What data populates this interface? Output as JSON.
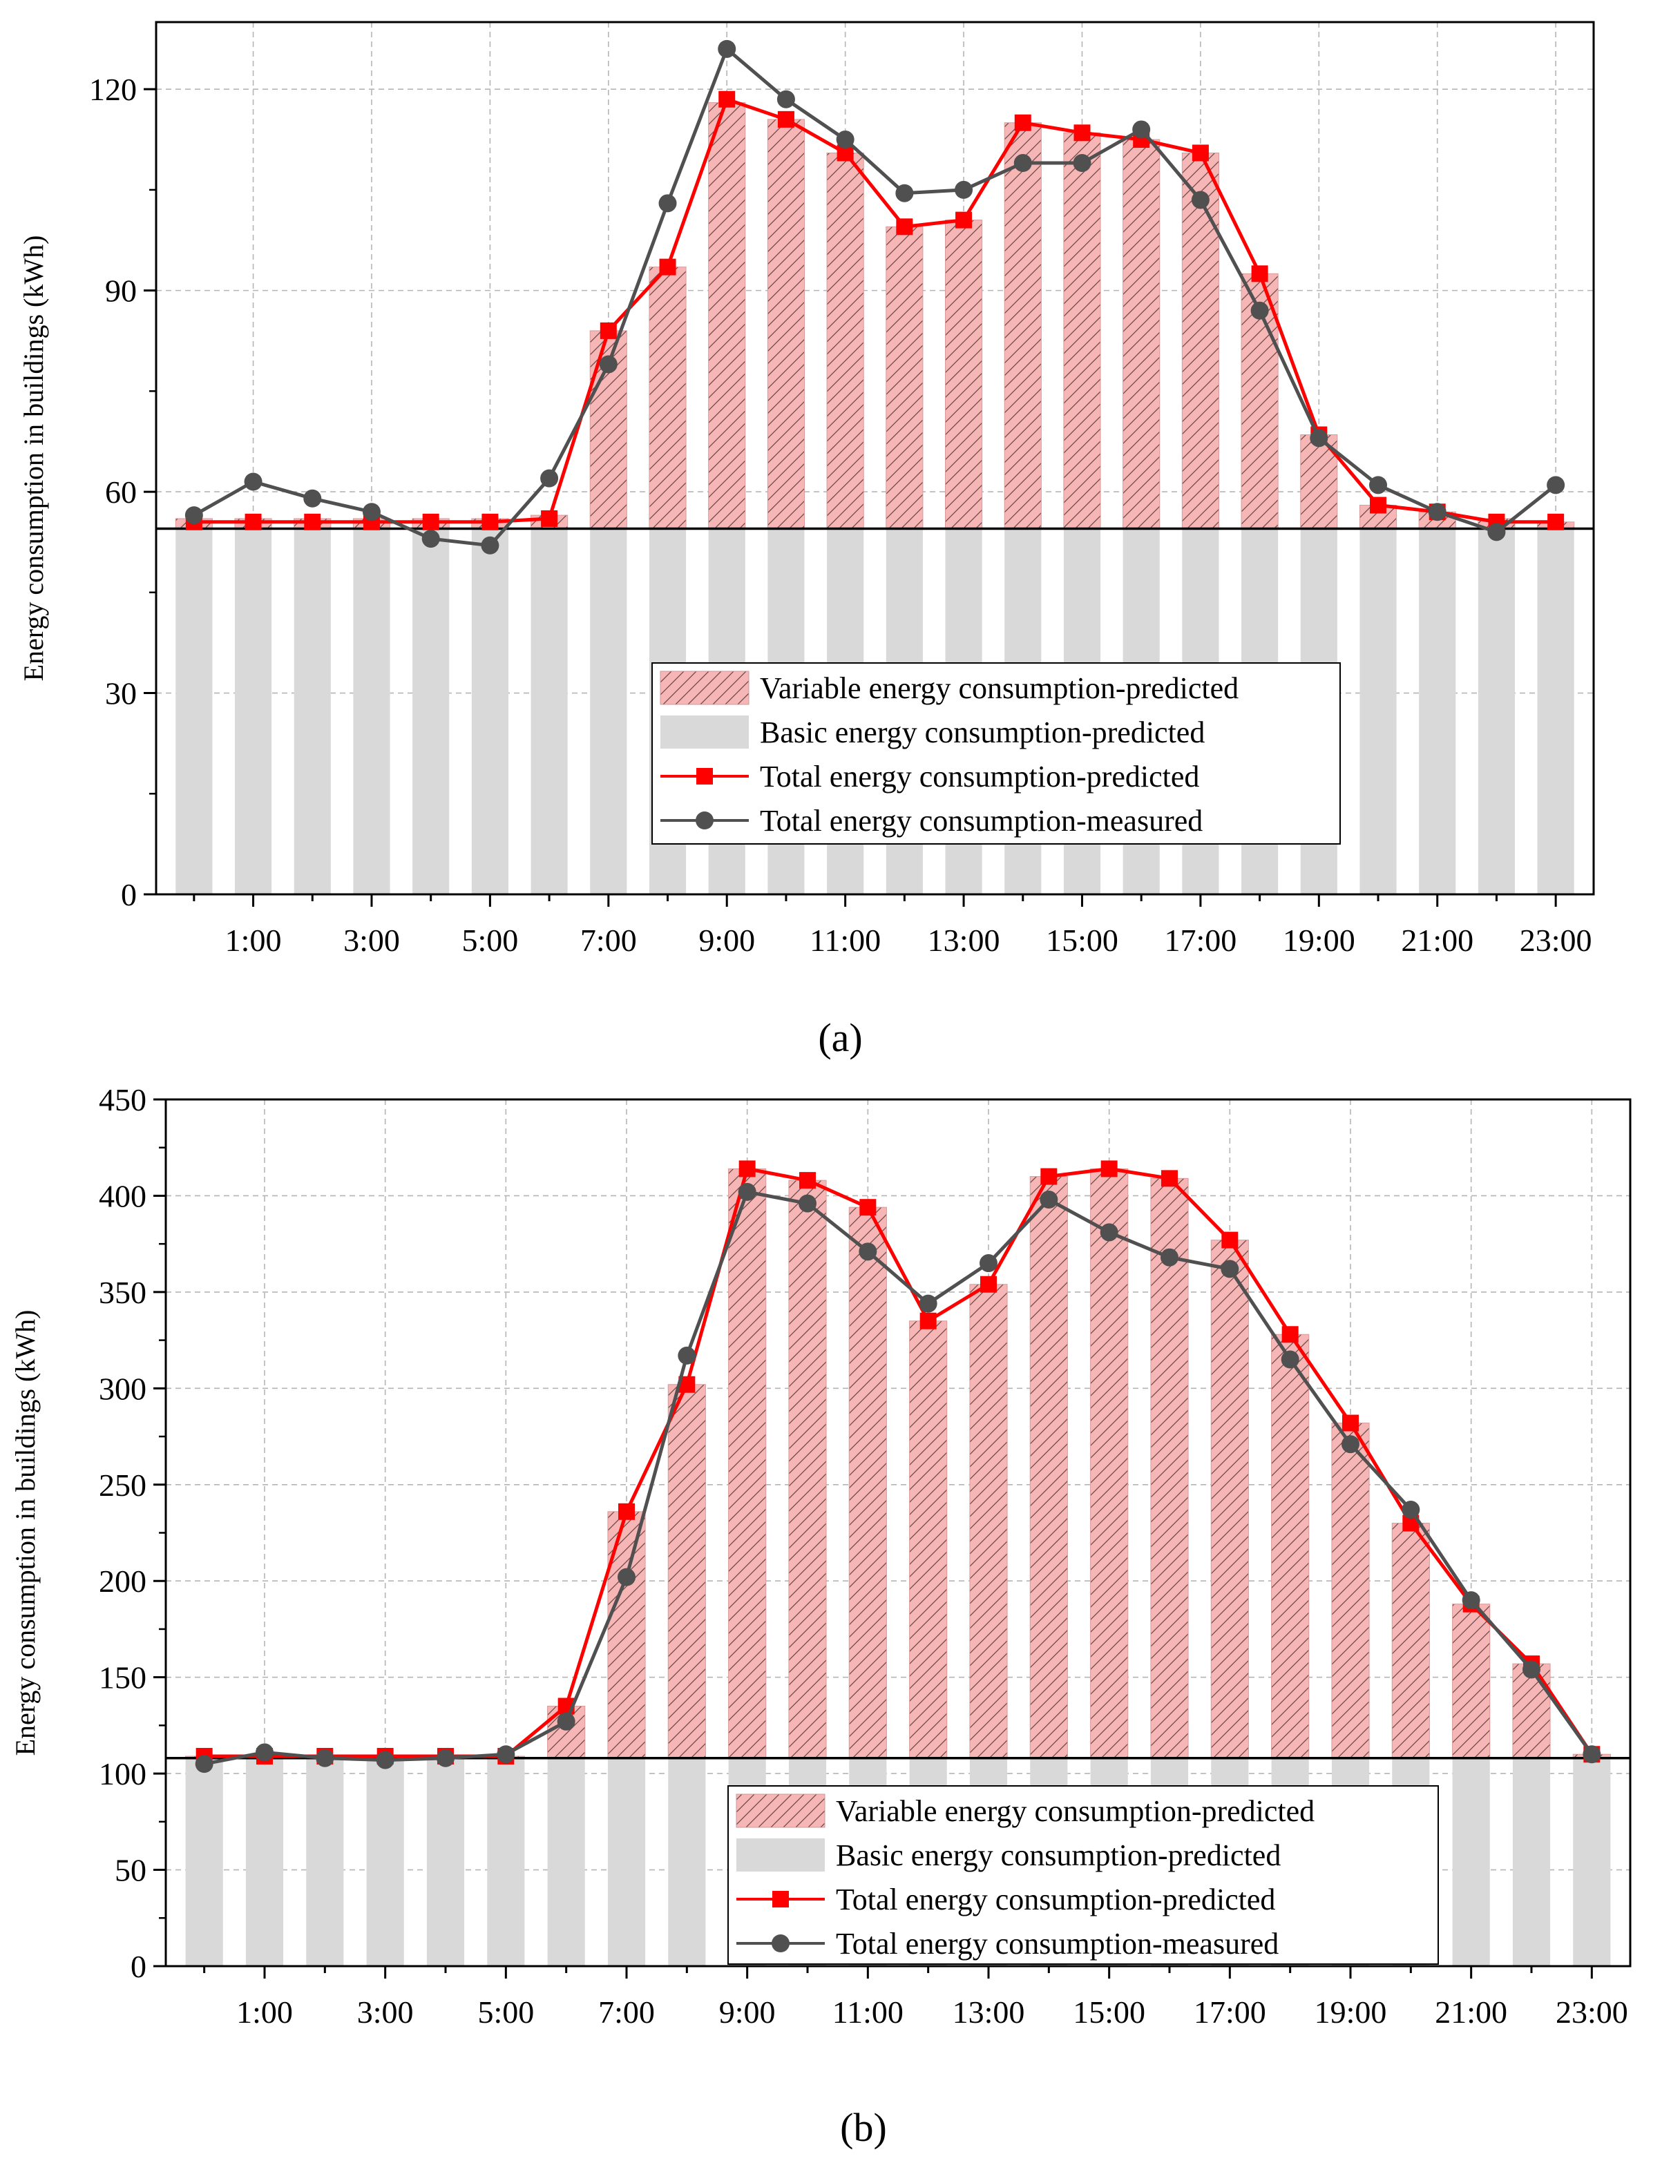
{
  "panels": [
    {
      "caption": "(a)",
      "chart_data": {
        "type": "bar",
        "ylabel": "Energy consumption in buildings (kWh)",
        "xlabel": "",
        "ylim": [
          0,
          130
        ],
        "yticks": [
          0,
          30,
          60,
          90,
          120
        ],
        "x_tick_labels": [
          "1:00",
          "3:00",
          "5:00",
          "7:00",
          "9:00",
          "11:00",
          "13:00",
          "15:00",
          "17:00",
          "19:00",
          "21:00",
          "23:00"
        ],
        "hours": [
          0,
          1,
          2,
          3,
          4,
          5,
          6,
          7,
          8,
          9,
          10,
          11,
          12,
          13,
          14,
          15,
          16,
          17,
          18,
          19,
          20,
          21,
          22,
          23
        ],
        "baseline": 54.5,
        "grid": true,
        "legend_position": "lower-right",
        "series": [
          {
            "name": "Variable energy consumption-predicted",
            "kind": "bar-stacked-top",
            "color": "#f7b6b6",
            "pattern": "hatch",
            "values": [
              56,
              56,
              56,
              56,
              56,
              56,
              56.5,
              84,
              93.5,
              118,
              115.5,
              110.5,
              99.5,
              100.5,
              115,
              113.5,
              112.5,
              110.5,
              92.5,
              68.5,
              58,
              57,
              56,
              55.5
            ]
          },
          {
            "name": "Basic energy consumption-predicted",
            "kind": "bar-base",
            "color": "#d9d9d9",
            "values": [
              54.5,
              54.5,
              54.5,
              54.5,
              54.5,
              54.5,
              54.5,
              54.5,
              54.5,
              54.5,
              54.5,
              54.5,
              54.5,
              54.5,
              54.5,
              54.5,
              54.5,
              54.5,
              54.5,
              54.5,
              54.5,
              54.5,
              54.5,
              54.5
            ]
          },
          {
            "name": "Total energy consumption-predicted",
            "kind": "line-square",
            "color": "#ff0000",
            "values": [
              55.5,
              55.5,
              55.5,
              55.5,
              55.5,
              55.5,
              56,
              84,
              93.5,
              118.5,
              115.5,
              110.5,
              99.5,
              100.5,
              115,
              113.5,
              112.5,
              110.5,
              92.5,
              68.5,
              58,
              57,
              55.5,
              55.5
            ]
          },
          {
            "name": "Total energy consumption-measured",
            "kind": "line-circle",
            "color": "#505050",
            "values": [
              56.5,
              61.5,
              59,
              57,
              53,
              52,
              62,
              79,
              103,
              126,
              118.5,
              112.5,
              104.5,
              105,
              109,
              109,
              114,
              103.5,
              87,
              68,
              61,
              57,
              54,
              61
            ]
          }
        ]
      }
    },
    {
      "caption": "(b)",
      "chart_data": {
        "type": "bar",
        "ylabel": "Energy consumption in buildings (kWh)",
        "xlabel": "",
        "ylim": [
          0,
          450
        ],
        "yticks": [
          0,
          50,
          100,
          150,
          200,
          250,
          300,
          350,
          400,
          450
        ],
        "x_tick_labels": [
          "1:00",
          "3:00",
          "5:00",
          "7:00",
          "9:00",
          "11:00",
          "13:00",
          "15:00",
          "17:00",
          "19:00",
          "21:00",
          "23:00"
        ],
        "hours": [
          0,
          1,
          2,
          3,
          4,
          5,
          6,
          7,
          8,
          9,
          10,
          11,
          12,
          13,
          14,
          15,
          16,
          17,
          18,
          19,
          20,
          21,
          22,
          23
        ],
        "baseline": 108,
        "grid": true,
        "legend_position": "lower-right",
        "series": [
          {
            "name": "Variable energy consumption-predicted",
            "kind": "bar-stacked-top",
            "color": "#f7b6b6",
            "pattern": "hatch",
            "values": [
              109,
              109,
              109,
              109,
              109,
              109,
              135,
              236,
              302,
              414,
              408,
              394,
              335,
              354,
              410,
              414,
              409,
              377,
              328,
              282,
              230,
              188,
              157,
              110
            ]
          },
          {
            "name": "Basic energy consumption-predicted",
            "kind": "bar-base",
            "color": "#d9d9d9",
            "values": [
              108,
              108,
              108,
              108,
              108,
              108,
              108,
              108,
              108,
              108,
              108,
              108,
              108,
              108,
              108,
              108,
              108,
              108,
              108,
              108,
              108,
              108,
              108,
              108
            ]
          },
          {
            "name": "Total energy consumption-predicted",
            "kind": "line-square",
            "color": "#ff0000",
            "values": [
              109,
              109,
              109,
              109,
              109,
              109,
              135,
              236,
              302,
              414,
              408,
              394,
              335,
              354,
              410,
              414,
              409,
              377,
              328,
              282,
              230,
              188,
              157,
              110
            ]
          },
          {
            "name": "Total energy consumption-measured",
            "kind": "line-circle",
            "color": "#505050",
            "values": [
              105,
              111,
              108,
              107,
              108,
              110,
              127,
              202,
              317,
              402,
              396,
              371,
              344,
              365,
              398,
              381,
              368,
              362,
              315,
              271,
              237,
              190,
              154,
              110
            ]
          }
        ]
      }
    }
  ]
}
